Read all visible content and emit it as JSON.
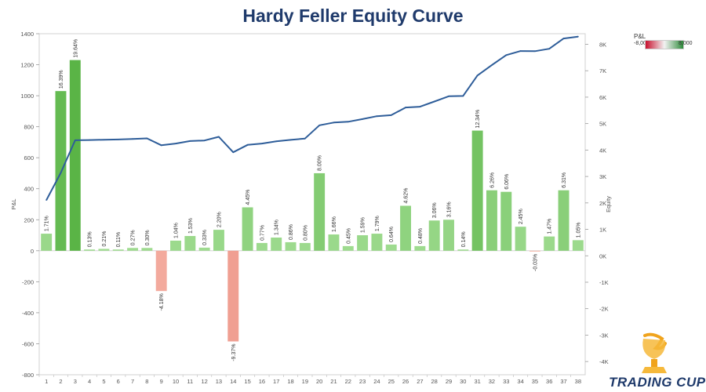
{
  "title": "Hardy Feller Equity Curve",
  "legend": {
    "title": "P&L",
    "min_label": "-8,000",
    "max_label": "8,000"
  },
  "logo": {
    "text": "TRADING CUP"
  },
  "colors": {
    "positive_bar": "#8dd17e",
    "negative_bar": "#f4a393",
    "line": "#2e5d99",
    "title": "#1f3a6b"
  },
  "chart_data": {
    "type": "bar+line",
    "title": "Hardy Feller Equity Curve",
    "categories": [
      "1",
      "2",
      "3",
      "4",
      "5",
      "6",
      "7",
      "8",
      "9",
      "10",
      "11",
      "12",
      "13",
      "14",
      "15",
      "16",
      "17",
      "18",
      "19",
      "20",
      "21",
      "22",
      "23",
      "24",
      "25",
      "26",
      "27",
      "28",
      "29",
      "30",
      "31",
      "32",
      "33",
      "34",
      "35",
      "36",
      "37",
      "38"
    ],
    "left_axis_label": "P&L",
    "right_axis_label": "Equity",
    "ylim_left": [
      -800,
      1400
    ],
    "ylim_right": [
      -4500,
      8400
    ],
    "left_ticks": [
      "1400",
      "1200",
      "1000",
      "800",
      "600",
      "400",
      "200",
      "0",
      "-200",
      "-400",
      "-600",
      "-800"
    ],
    "right_ticks": [
      "8K",
      "7K",
      "6K",
      "5K",
      "4K",
      "3K",
      "2K",
      "1K",
      "0K",
      "-1K",
      "-2K",
      "-3K",
      "-4K"
    ],
    "pnl": [
      110,
      1030,
      1230,
      8,
      12,
      8,
      18,
      18,
      -260,
      65,
      95,
      20,
      135,
      -585,
      280,
      50,
      85,
      55,
      50,
      500,
      105,
      30,
      100,
      110,
      40,
      290,
      30,
      195,
      200,
      8,
      775,
      390,
      380,
      155,
      -5,
      92,
      390,
      68
    ],
    "pct_labels": [
      "1.71%",
      "16.39%",
      "19.64%",
      "0.13%",
      "0.21%",
      "0.11%",
      "0.27%",
      "0.30%",
      "-4.18%",
      "1.04%",
      "1.53%",
      "0.33%",
      "2.20%",
      "-9.37%",
      "4.45%",
      "0.77%",
      "1.34%",
      "0.86%",
      "0.80%",
      "8.00%",
      "1.66%",
      "0.45%",
      "1.59%",
      "1.79%",
      "0.64%",
      "4.62%",
      "0.48%",
      "3.06%",
      "3.16%",
      "0.14%",
      "12.34%",
      "6.26%",
      "6.06%",
      "2.45%",
      "-0.03%",
      "1.47%",
      "6.31%",
      "1.05%"
    ],
    "equity": [
      2110,
      3140,
      4370,
      4380,
      4390,
      4400,
      4420,
      4440,
      4180,
      4245,
      4340,
      4360,
      4500,
      3915,
      4195,
      4245,
      4330,
      4385,
      4435,
      4935,
      5040,
      5070,
      5170,
      5280,
      5320,
      5610,
      5640,
      5835,
      6035,
      6045,
      6820,
      7210,
      7590,
      7745,
      7740,
      7830,
      8220,
      8290
    ]
  }
}
